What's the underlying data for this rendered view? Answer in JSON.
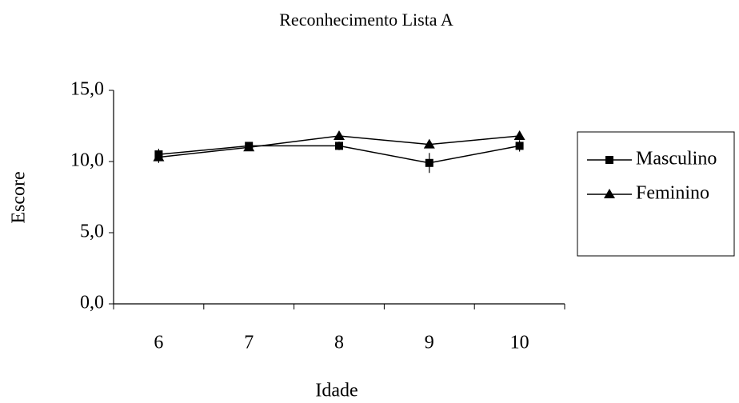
{
  "chart_data": {
    "type": "line",
    "title": "Reconhecimento Lista A",
    "xlabel": "Idade",
    "ylabel": "Escore",
    "categories": [
      "6",
      "7",
      "8",
      "9",
      "10"
    ],
    "series": [
      {
        "name": "Masculino",
        "color": "#000000",
        "marker": "square",
        "values": [
          10.5,
          11.1,
          11.1,
          9.9,
          11.1
        ],
        "errors": [
          0.4,
          0.2,
          0.3,
          0.7,
          0.4
        ]
      },
      {
        "name": "Feminino",
        "color": "#000000",
        "marker": "triangle",
        "values": [
          10.3,
          11.0,
          11.8,
          11.2,
          11.8
        ],
        "errors": [
          0.4,
          0.2,
          0.2,
          0.2,
          0.2
        ]
      }
    ],
    "ylim": [
      0,
      15
    ],
    "yticks": [
      {
        "value": 0,
        "label": "0,0"
      },
      {
        "value": 5,
        "label": "5,0"
      },
      {
        "value": 10,
        "label": "10,0"
      },
      {
        "value": 15,
        "label": "15,0"
      }
    ],
    "grid": false,
    "legend": "right"
  }
}
